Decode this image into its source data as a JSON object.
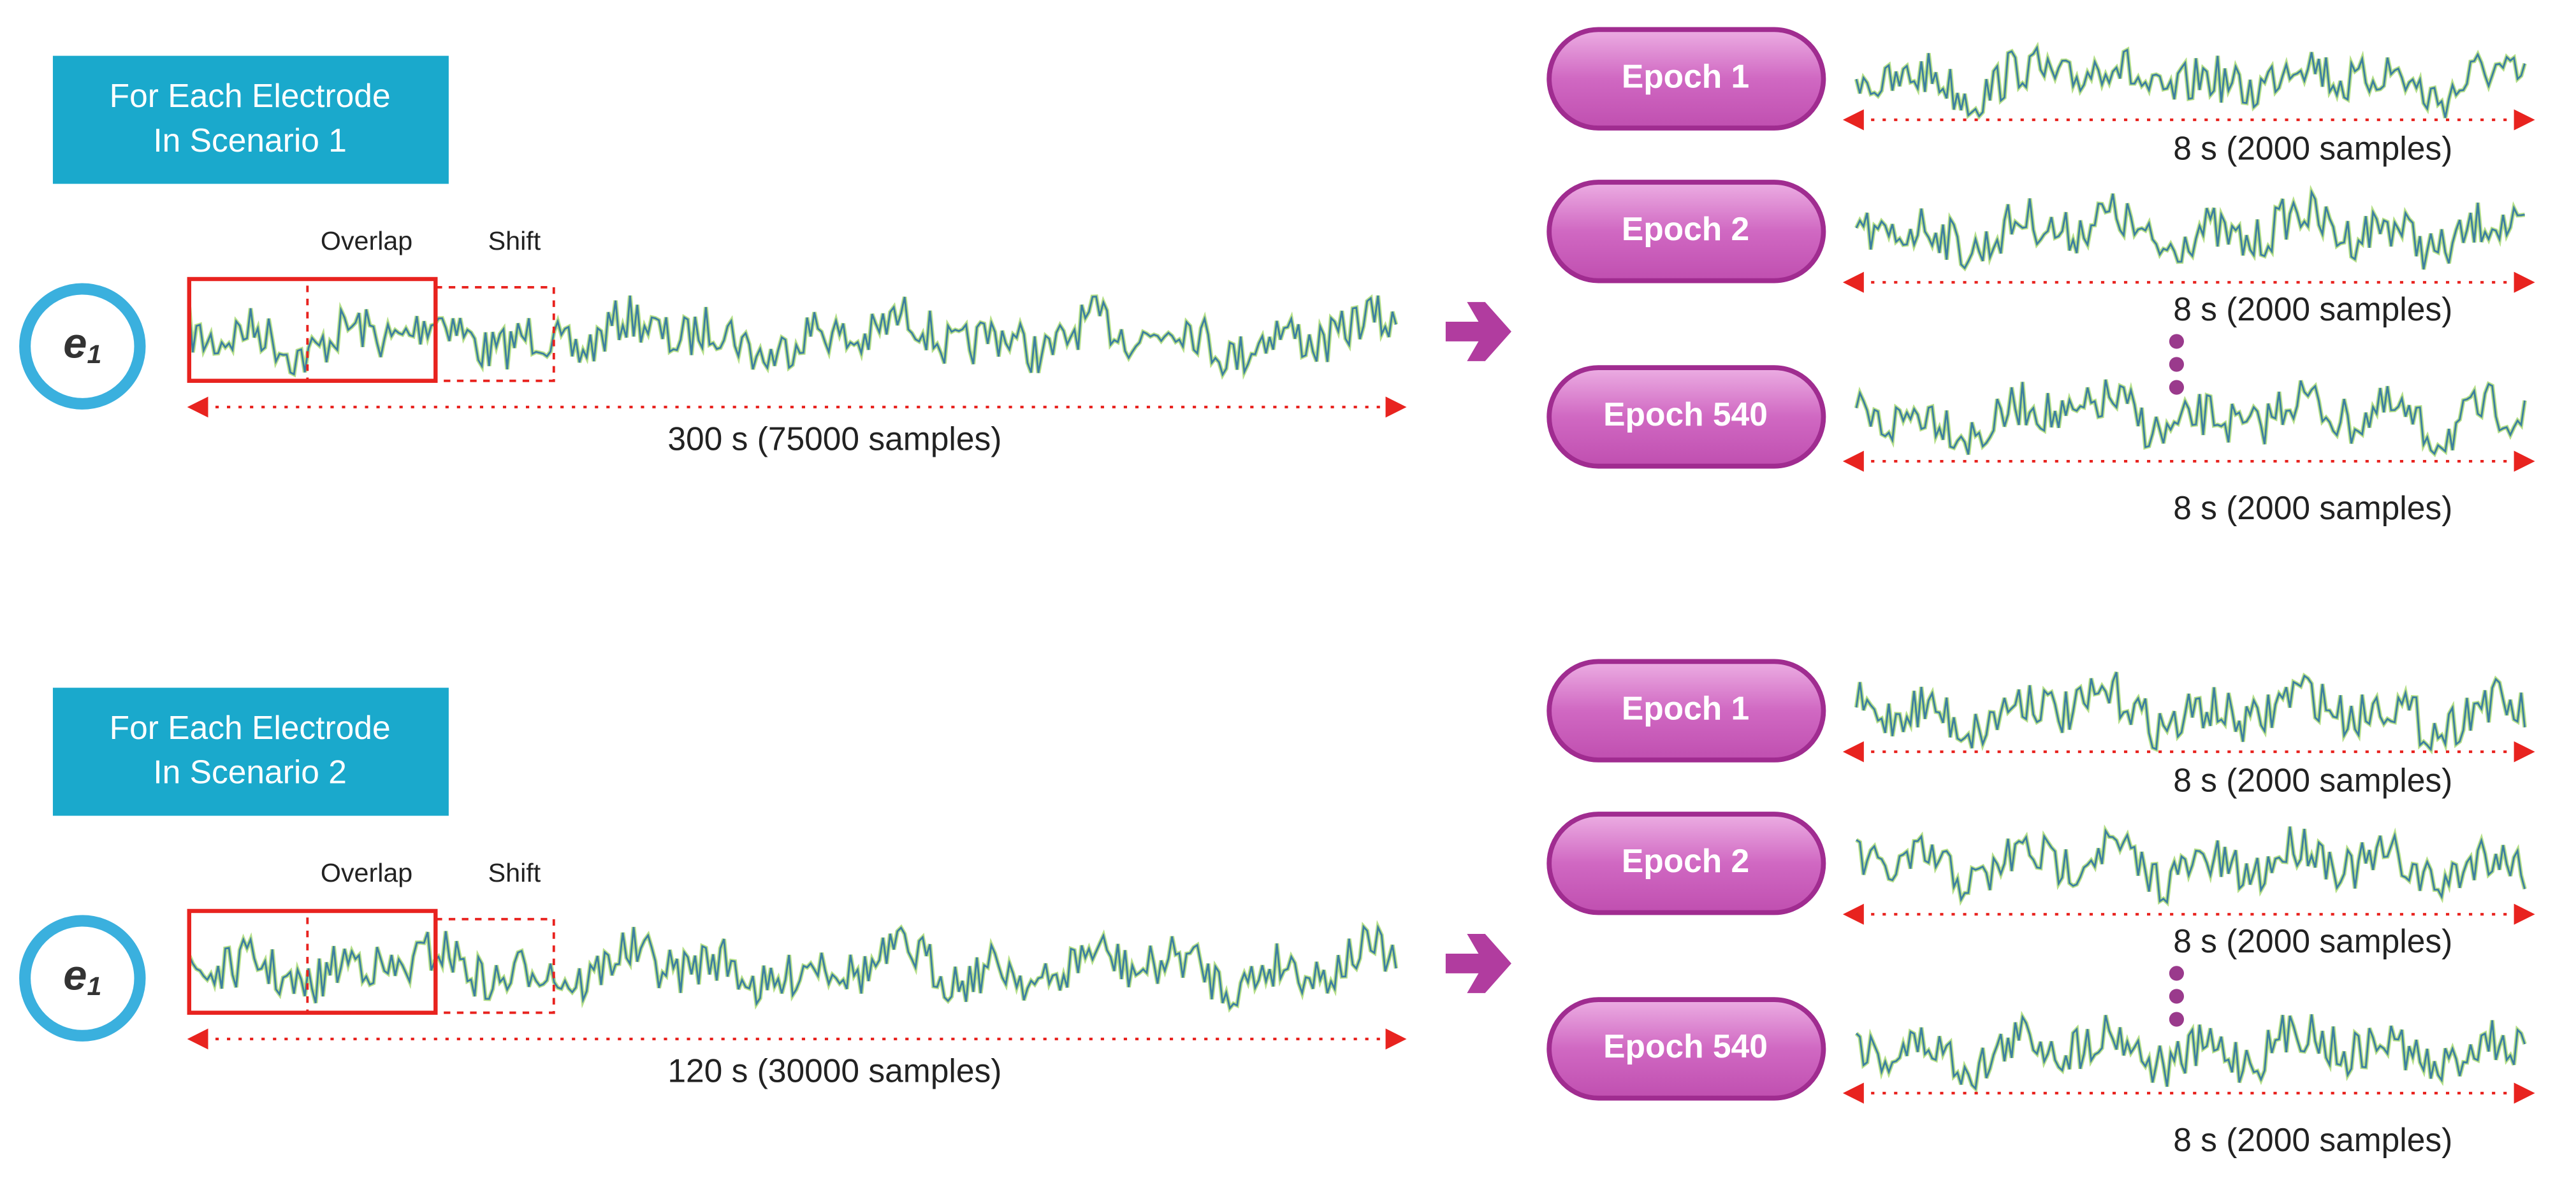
{
  "scenarios": [
    {
      "title_lines": [
        "For Each Electrode",
        "In Scenario 1"
      ],
      "electrode": {
        "base": "e",
        "subscript": "1"
      },
      "overlap_label": "Overlap",
      "shift_label": "Shift",
      "duration_label": "300 s (75000 samples)",
      "epochs": [
        {
          "label": "Epoch 1",
          "duration_label": "8 s (2000 samples)"
        },
        {
          "label": "Epoch 2",
          "duration_label": "8 s (2000 samples)"
        },
        {
          "label": "Epoch 540",
          "duration_label": "8 s (2000 samples)"
        }
      ]
    },
    {
      "title_lines": [
        "For Each Electrode",
        "In Scenario 2"
      ],
      "electrode": {
        "base": "e",
        "subscript": "1"
      },
      "overlap_label": "Overlap",
      "shift_label": "Shift",
      "duration_label": "120 s (30000 samples)",
      "epochs": [
        {
          "label": "Epoch 1",
          "duration_label": "8 s (2000 samples)"
        },
        {
          "label": "Epoch 2",
          "duration_label": "8 s (2000 samples)"
        },
        {
          "label": "Epoch 540",
          "duration_label": "8 s (2000 samples)"
        }
      ]
    }
  ]
}
